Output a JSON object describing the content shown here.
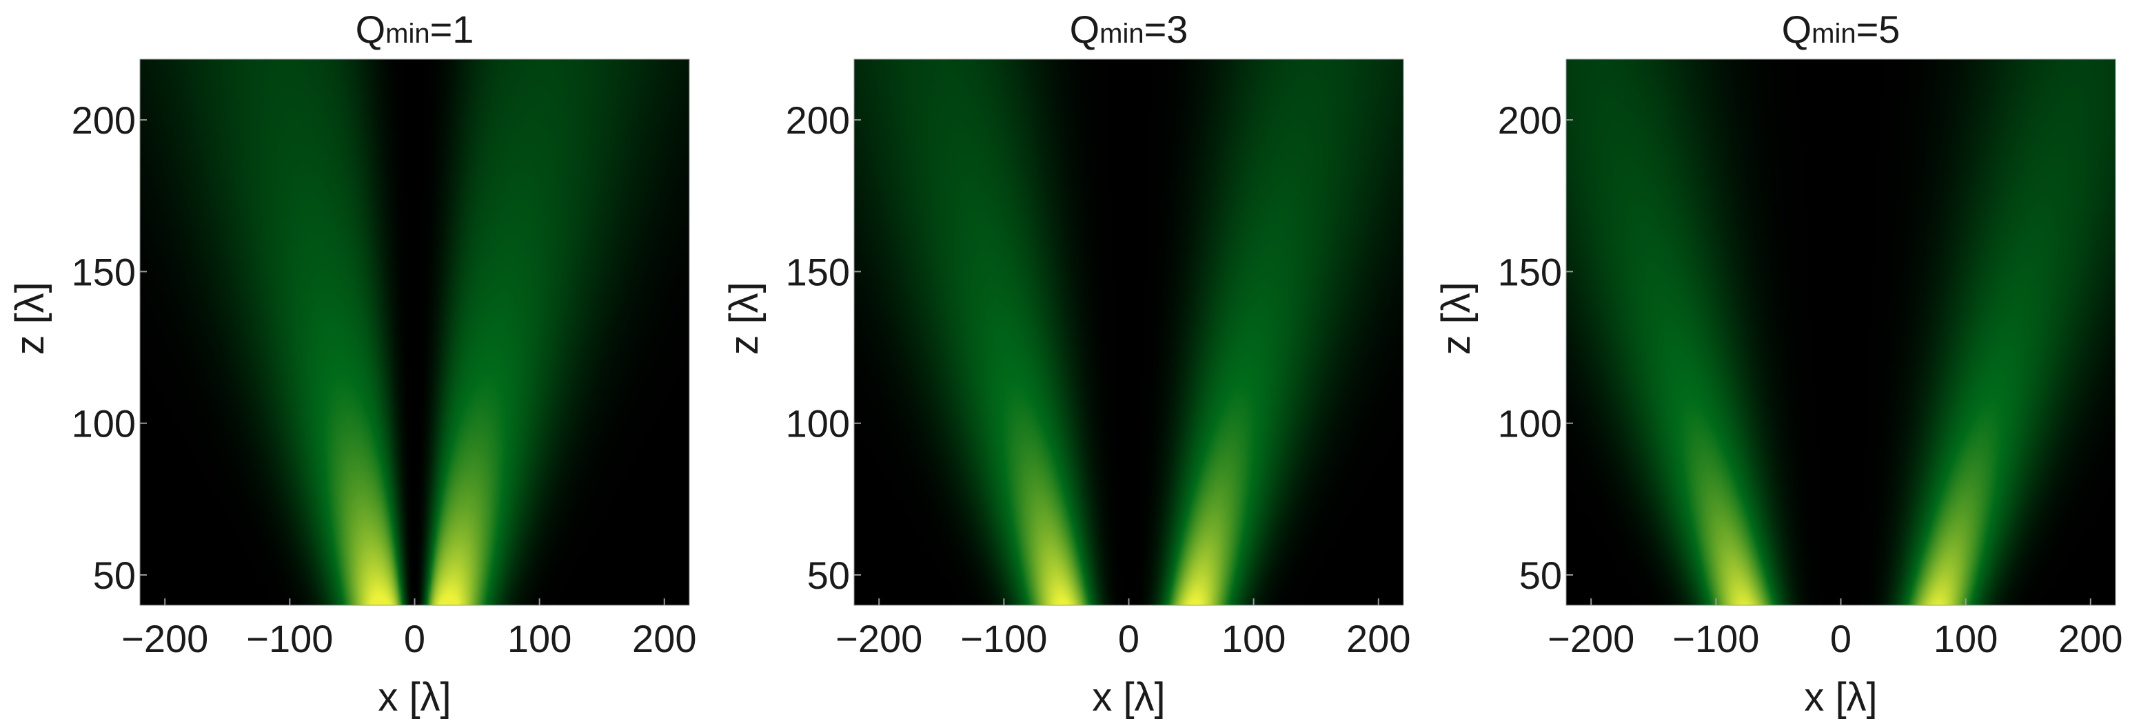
{
  "chart_data": [
    {
      "type": "heatmap",
      "title_main": "Q",
      "title_sub": "min",
      "title_rest": "=1",
      "q_min": 1,
      "xlabel": "x [λ]",
      "ylabel": "z [λ]",
      "xlim": [
        -220,
        220
      ],
      "ylim": [
        40,
        220
      ],
      "xticks": [
        -200,
        -100,
        0,
        100,
        200
      ],
      "xtick_labels": [
        "−200",
        "−100",
        "0",
        "100",
        "200"
      ],
      "yticks": [
        50,
        100,
        150,
        200
      ],
      "ytick_labels": [
        "50",
        "100",
        "150",
        "200"
      ],
      "colormap": [
        "#000000",
        "#006b1a",
        "#ecf23a"
      ],
      "pattern": {
        "center_dark_halfwidth_at_z40": 10,
        "lobe_angle_deg": 22
      }
    },
    {
      "type": "heatmap",
      "title_main": "Q",
      "title_sub": "min",
      "title_rest": "=3",
      "q_min": 3,
      "xlabel": "x [λ]",
      "ylabel": "z [λ]",
      "xlim": [
        -220,
        220
      ],
      "ylim": [
        40,
        220
      ],
      "xticks": [
        -200,
        -100,
        0,
        100,
        200
      ],
      "xtick_labels": [
        "−200",
        "−100",
        "0",
        "100",
        "200"
      ],
      "yticks": [
        50,
        100,
        150,
        200
      ],
      "ytick_labels": [
        "50",
        "100",
        "150",
        "200"
      ],
      "colormap": [
        "#000000",
        "#006b1a",
        "#ecf23a"
      ],
      "pattern": {
        "center_dark_halfwidth_at_z40": 30,
        "lobe_angle_deg": 26
      }
    },
    {
      "type": "heatmap",
      "title_main": "Q",
      "title_sub": "min",
      "title_rest": "=5",
      "q_min": 5,
      "xlabel": "x [λ]",
      "ylabel": "z [λ]",
      "xlim": [
        -220,
        220
      ],
      "ylim": [
        40,
        220
      ],
      "xticks": [
        -200,
        -100,
        0,
        100,
        200
      ],
      "xtick_labels": [
        "−200",
        "−100",
        "0",
        "100",
        "200"
      ],
      "yticks": [
        50,
        100,
        150,
        200
      ],
      "ytick_labels": [
        "50",
        "100",
        "150",
        "200"
      ],
      "colormap": [
        "#000000",
        "#006b1a",
        "#ecf23a"
      ],
      "pattern": {
        "center_dark_halfwidth_at_z40": 50,
        "lobe_angle_deg": 30
      }
    }
  ]
}
